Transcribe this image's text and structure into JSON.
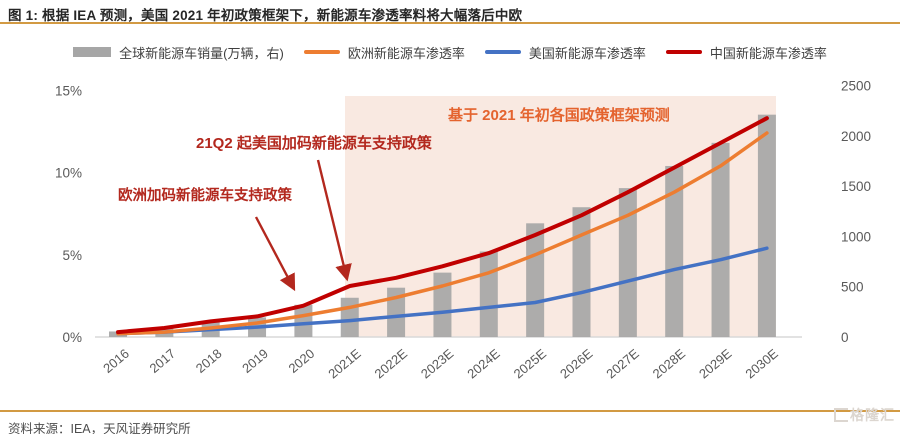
{
  "figure": {
    "title": "图 1: 根据 IEA 预测，美国 2021 年初政策框架下，新能源车渗透率料将大幅落后中欧",
    "source": "资料来源：IEA，天风证券研究所",
    "watermark": "格隆汇",
    "accent_rule_color": "#D29A43"
  },
  "legend": [
    {
      "key": "global-ev-sales",
      "label": "全球新能源车销量(万辆，右)",
      "color": "#A6A6A6",
      "swatch": "bar"
    },
    {
      "key": "europe-penetration",
      "label": "欧洲新能源车渗透率",
      "color": "#ED7D31",
      "swatch": "line"
    },
    {
      "key": "us-penetration",
      "label": "美国新能源车渗透率",
      "color": "#4472C4",
      "swatch": "line"
    },
    {
      "key": "china-penetration",
      "label": "中国新能源车渗透率",
      "color": "#C00000",
      "swatch": "line"
    }
  ],
  "annotations": {
    "europe_policy": "欧洲加码新能源车支持政策",
    "us_policy": "21Q2 起美国加码新能源车支持政策",
    "forecast_basis": "基于 2021 年初各国政策框架预测",
    "annotation_color": "#B3281E",
    "forecast_color": "#E4632E"
  },
  "chart_data": {
    "type": "combo-bar-line",
    "categories": [
      "2016",
      "2017",
      "2018",
      "2019",
      "2020",
      "2021E",
      "2022E",
      "2023E",
      "2024E",
      "2025E",
      "2026E",
      "2027E",
      "2028E",
      "2029E",
      "2030E"
    ],
    "bar_series": {
      "name": "全球新能源车销量(万辆，右)",
      "axis": "right",
      "color": "#A6A6A6",
      "values": [
        55,
        85,
        160,
        195,
        320,
        390,
        490,
        640,
        850,
        1130,
        1290,
        1480,
        1700,
        1930,
        2210
      ]
    },
    "line_series": [
      {
        "name": "美国新能源车渗透率",
        "key": "us",
        "color": "#4472C4",
        "axis": "left",
        "width": 3.5,
        "values": [
          0.2,
          0.3,
          0.45,
          0.6,
          0.8,
          1.0,
          1.25,
          1.5,
          1.8,
          2.1,
          2.7,
          3.4,
          4.1,
          4.7,
          5.4
        ]
      },
      {
        "name": "欧洲新能源车渗透率",
        "key": "europe",
        "color": "#ED7D31",
        "axis": "left",
        "width": 3.5,
        "values": [
          0.2,
          0.3,
          0.55,
          0.85,
          1.3,
          1.8,
          2.4,
          3.1,
          3.9,
          5.0,
          6.2,
          7.4,
          8.8,
          10.4,
          12.4
        ]
      },
      {
        "name": "中国新能源车渗透率",
        "key": "china",
        "color": "#C00000",
        "axis": "left",
        "width": 4,
        "values": [
          0.3,
          0.55,
          0.95,
          1.25,
          1.9,
          3.1,
          3.6,
          4.3,
          5.1,
          6.2,
          7.4,
          8.8,
          10.3,
          11.8,
          13.3
        ]
      }
    ],
    "left_axis": {
      "unit": "%",
      "ticks": [
        0,
        5,
        10,
        15
      ],
      "tick_labels": [
        "0%",
        "5%",
        "10%",
        "15%"
      ],
      "min": 0,
      "max": 15
    },
    "right_axis": {
      "ticks": [
        0,
        500,
        1000,
        1500,
        2000,
        2500
      ],
      "min": 0,
      "max": 2500
    },
    "forecast_region": {
      "from": "2021E",
      "to": "2030E",
      "fill": "#F9E9E1"
    },
    "grid": false,
    "legend_position": "top"
  }
}
